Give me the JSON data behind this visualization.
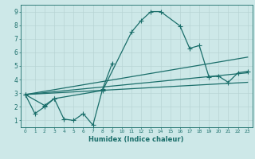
{
  "title": "",
  "xlabel": "Humidex (Indice chaleur)",
  "bg_color": "#cde8e8",
  "grid_color": "#b8d4d4",
  "line_color": "#1a6e6a",
  "xlim": [
    -0.5,
    23.5
  ],
  "ylim": [
    0.5,
    9.5
  ],
  "xticks": [
    0,
    1,
    2,
    3,
    4,
    5,
    6,
    7,
    8,
    9,
    10,
    11,
    12,
    13,
    14,
    15,
    16,
    17,
    18,
    19,
    20,
    21,
    22,
    23
  ],
  "yticks": [
    1,
    2,
    3,
    4,
    5,
    6,
    7,
    8,
    9
  ],
  "line1_x": [
    0,
    1,
    2,
    3,
    4,
    5,
    6,
    7,
    8,
    9
  ],
  "line1_y": [
    2.9,
    1.5,
    2.0,
    2.6,
    1.1,
    1.0,
    1.5,
    0.65,
    3.3,
    5.2
  ],
  "line2_x": [
    0,
    2,
    3,
    8,
    11,
    12,
    13,
    14,
    16,
    17,
    18,
    19,
    20,
    21,
    22,
    23
  ],
  "line2_y": [
    2.9,
    2.1,
    2.6,
    3.2,
    7.5,
    8.35,
    9.0,
    9.0,
    7.95,
    6.3,
    6.5,
    4.2,
    4.25,
    3.8,
    4.5,
    4.6
  ],
  "line3_x": [
    0,
    23
  ],
  "line3_y": [
    2.9,
    5.65
  ],
  "line4_x": [
    0,
    23
  ],
  "line4_y": [
    2.9,
    4.5
  ],
  "line5_x": [
    0,
    23
  ],
  "line5_y": [
    2.9,
    3.8
  ]
}
